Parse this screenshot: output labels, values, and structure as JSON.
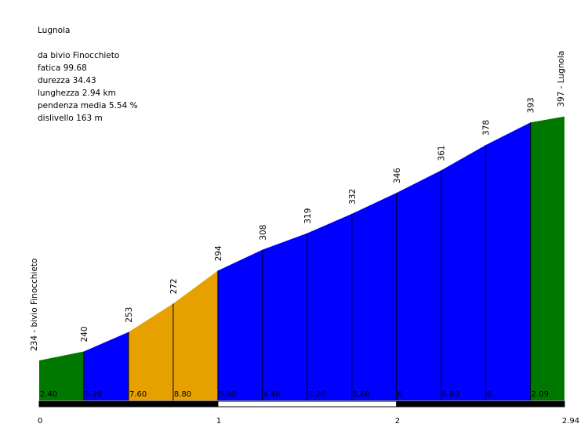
{
  "chart_data": {
    "type": "area",
    "title": "Lugnola",
    "stats": [
      "da bivio Finocchieto",
      "fatica 99.68",
      "durezza 34.43",
      "lunghezza 2.94 km",
      "pendenza media 5.54 %",
      "dislivello 163 m"
    ],
    "xlim": [
      0,
      2.94
    ],
    "ylim": [
      220,
      400
    ],
    "x_ticks": [
      "0",
      "1",
      "2",
      "2.94"
    ],
    "x_tick_values": [
      0,
      1,
      2,
      2.94
    ],
    "points": [
      {
        "x": 0,
        "y": 234,
        "label": "234 - bivio Finocchieto"
      },
      {
        "x": 0.25,
        "y": 240,
        "label": "240"
      },
      {
        "x": 0.5,
        "y": 253,
        "label": "253"
      },
      {
        "x": 0.75,
        "y": 272,
        "label": "272"
      },
      {
        "x": 1.0,
        "y": 294,
        "label": "294"
      },
      {
        "x": 1.25,
        "y": 308,
        "label": "308"
      },
      {
        "x": 1.5,
        "y": 319,
        "label": "319"
      },
      {
        "x": 1.75,
        "y": 332,
        "label": "332"
      },
      {
        "x": 2.0,
        "y": 346,
        "label": "346"
      },
      {
        "x": 2.25,
        "y": 361,
        "label": "361"
      },
      {
        "x": 2.5,
        "y": 378,
        "label": "378"
      },
      {
        "x": 2.75,
        "y": 393,
        "label": "393"
      },
      {
        "x": 2.94,
        "y": 397,
        "label": "397 - Lugnola"
      }
    ],
    "segments": [
      {
        "gradient": "2.40",
        "color": "#007800"
      },
      {
        "gradient": "5.20",
        "color": "#0000ff"
      },
      {
        "gradient": "7.60",
        "color": "#e6a000"
      },
      {
        "gradient": "8.80",
        "color": "#e6a000"
      },
      {
        "gradient": "5.60",
        "color": "#0000ff"
      },
      {
        "gradient": "4.40",
        "color": "#0000ff"
      },
      {
        "gradient": "5.20",
        "color": "#0000ff"
      },
      {
        "gradient": "5.60",
        "color": "#0000ff"
      },
      {
        "gradient": "6",
        "color": "#0000ff"
      },
      {
        "gradient": "6.80",
        "color": "#0000ff"
      },
      {
        "gradient": "6",
        "color": "#0000ff"
      },
      {
        "gradient": "2.09",
        "color": "#007800"
      }
    ]
  }
}
